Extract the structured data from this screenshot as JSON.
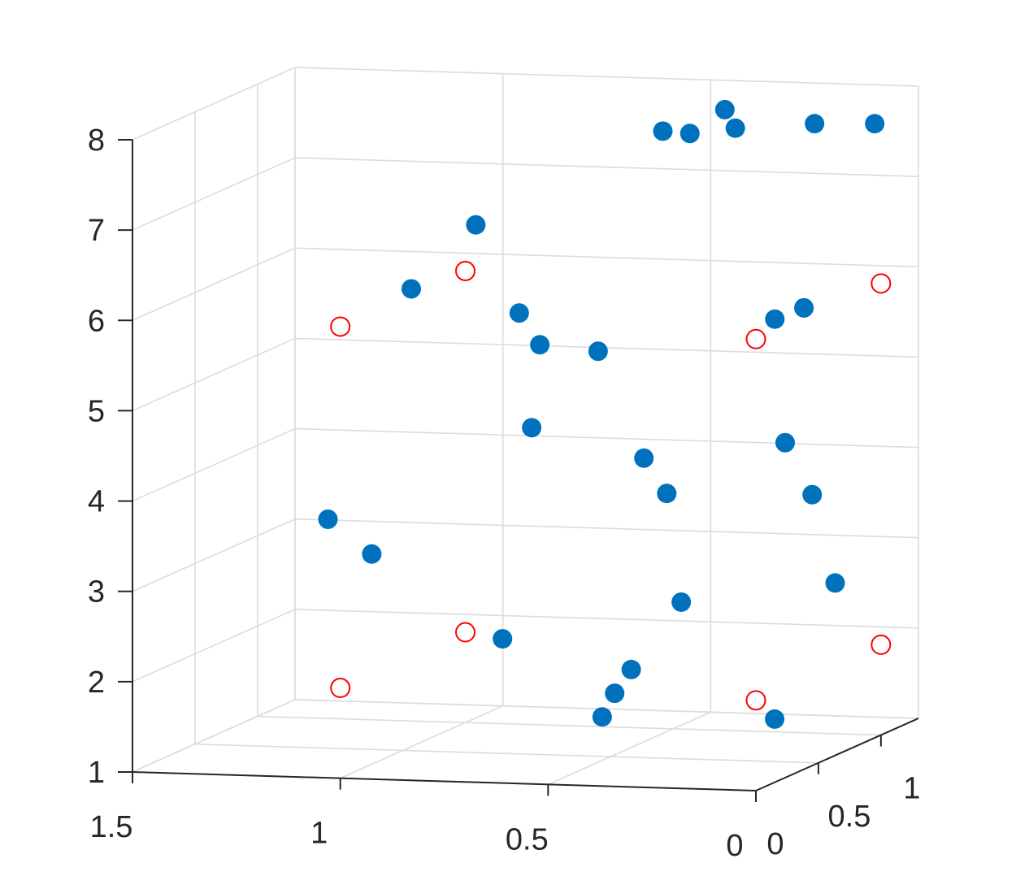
{
  "chart_data": {
    "type": "scatter",
    "title": "",
    "xlabel": "",
    "ylabel": "",
    "zlabel": "",
    "xlim": [
      0,
      1.5
    ],
    "ylim": [
      0,
      1.3
    ],
    "zlim": [
      1,
      8
    ],
    "grid": true,
    "x_ticks": [
      {
        "value": 1.5,
        "label": "1.5"
      },
      {
        "value": 1,
        "label": "1"
      },
      {
        "value": 0.5,
        "label": "0.5"
      },
      {
        "value": 0,
        "label": "0"
      }
    ],
    "y_ticks": [
      {
        "value": 0,
        "label": "0"
      },
      {
        "value": 0.5,
        "label": "0.5"
      },
      {
        "value": 1,
        "label": "1"
      }
    ],
    "z_ticks": [
      {
        "value": 1,
        "label": "1"
      },
      {
        "value": 2,
        "label": "2"
      },
      {
        "value": 3,
        "label": "3"
      },
      {
        "value": 4,
        "label": "4"
      },
      {
        "value": 5,
        "label": "5"
      },
      {
        "value": 6,
        "label": "6"
      },
      {
        "value": 7,
        "label": "7"
      },
      {
        "value": 8,
        "label": "8"
      }
    ],
    "series": [
      {
        "marker": "filled-circle",
        "color": "#0072BD",
        "points": [
          {
            "x": 1.05,
            "y": 1.25,
            "z": 6.35
          },
          {
            "x": 1.1,
            "y": 0.9,
            "z": 5.85
          },
          {
            "x": 1.15,
            "y": 0.75,
            "z": 3.0
          },
          {
            "x": 1.15,
            "y": 0.4,
            "z": 3.6
          },
          {
            "x": 0.55,
            "y": 1.3,
            "z": 7.4
          },
          {
            "x": 0.6,
            "y": 1.25,
            "z": 7.45
          },
          {
            "x": 0.78,
            "y": 0.7,
            "z": 5.75
          },
          {
            "x": 0.72,
            "y": 0.6,
            "z": 4.55
          },
          {
            "x": 0.5,
            "y": 0.4,
            "z": 5.55
          },
          {
            "x": 0.45,
            "y": 0.6,
            "z": 4.25
          },
          {
            "x": 0.38,
            "y": 0.55,
            "z": 3.9
          },
          {
            "x": 0.25,
            "y": 1.3,
            "z": 7.55
          },
          {
            "x": 0.15,
            "y": 0.65,
            "z": 5.8
          },
          {
            "x": 0.55,
            "y": 0.1,
            "z": 5.8
          },
          {
            "x": 0.7,
            "y": 0.3,
            "z": 2.4
          },
          {
            "x": 0.4,
            "y": 0.2,
            "z": 1.9
          },
          {
            "x": 0.4,
            "y": 0.1,
            "z": 1.7
          },
          {
            "x": 0.3,
            "y": 0.4,
            "z": 2.8
          },
          {
            "x": 0.3,
            "y": 0.0,
            "z": 2.3
          },
          {
            "x": 0.2,
            "y": 0.5,
            "z": 8.0
          },
          {
            "x": 0.18,
            "y": 0.35,
            "z": 8.3
          },
          {
            "x": 0.05,
            "y": 0.55,
            "z": 6.0
          },
          {
            "x": 0.05,
            "y": 0.4,
            "z": 4.6
          },
          {
            "x": 0.0,
            "y": 0.45,
            "z": 4.0
          },
          {
            "x": 0.05,
            "y": 0.8,
            "z": 2.8
          },
          {
            "x": 0.0,
            "y": 0.15,
            "z": 1.7
          },
          {
            "x": 0.0,
            "y": 0.95,
            "z": 7.8
          }
        ]
      },
      {
        "marker": "open-circle",
        "color": "#FF0000",
        "points": [
          {
            "x": 1,
            "y": 1,
            "z": 6
          },
          {
            "x": 1,
            "y": 1,
            "z": 2
          },
          {
            "x": 1,
            "y": 0,
            "z": 6
          },
          {
            "x": 1,
            "y": 0,
            "z": 2
          },
          {
            "x": 0,
            "y": 1,
            "z": 6
          },
          {
            "x": 0,
            "y": 1,
            "z": 2
          },
          {
            "x": 0,
            "y": 0,
            "z": 6
          },
          {
            "x": 0,
            "y": 0,
            "z": 2
          }
        ]
      }
    ]
  }
}
